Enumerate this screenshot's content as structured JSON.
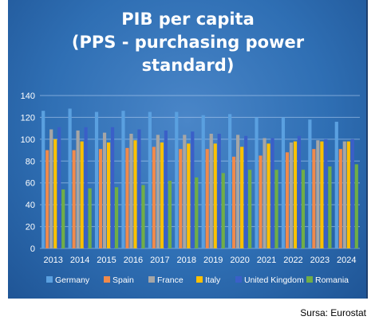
{
  "chart_data": {
    "type": "bar",
    "title_lines": [
      "PIB per capita",
      "(PPS - purchasing power",
      "standard)"
    ],
    "categories": [
      "2013",
      "2014",
      "2015",
      "2016",
      "2017",
      "2018",
      "2019",
      "2020",
      "2021",
      "2022",
      "2023",
      "2024"
    ],
    "series": [
      {
        "name": "Germany",
        "values": [
          126,
          128,
          125,
          126,
          125,
          125,
          122,
          123,
          120,
          120,
          118,
          116
        ]
      },
      {
        "name": "Spain",
        "values": [
          90,
          90,
          91,
          92,
          93,
          91,
          91,
          84,
          85,
          88,
          91,
          91
        ]
      },
      {
        "name": "France",
        "values": [
          109,
          108,
          106,
          105,
          104,
          104,
          105,
          104,
          101,
          97,
          99,
          98
        ]
      },
      {
        "name": "Italy",
        "values": [
          100,
          98,
          97,
          99,
          97,
          96,
          96,
          93,
          96,
          98,
          98,
          98
        ]
      },
      {
        "name": "United Kingdom",
        "values": [
          111,
          111,
          111,
          109,
          108,
          107,
          105,
          103,
          101,
          103,
          100,
          100
        ]
      },
      {
        "name": "Romania",
        "values": [
          54,
          55,
          56,
          58,
          62,
          65,
          69,
          72,
          72,
          72,
          75,
          77
        ]
      }
    ],
    "ylim": [
      0,
      140
    ],
    "yticks": [
      0,
      20,
      40,
      60,
      80,
      100,
      120,
      140
    ],
    "grid": true,
    "legend_position": "bottom",
    "colors": [
      "#5aa0e0",
      "#f08a4b",
      "#a6a6a6",
      "#ffc000",
      "#3a5fc8",
      "#70ad47"
    ]
  },
  "source_note": "Sursa: Eurostat"
}
